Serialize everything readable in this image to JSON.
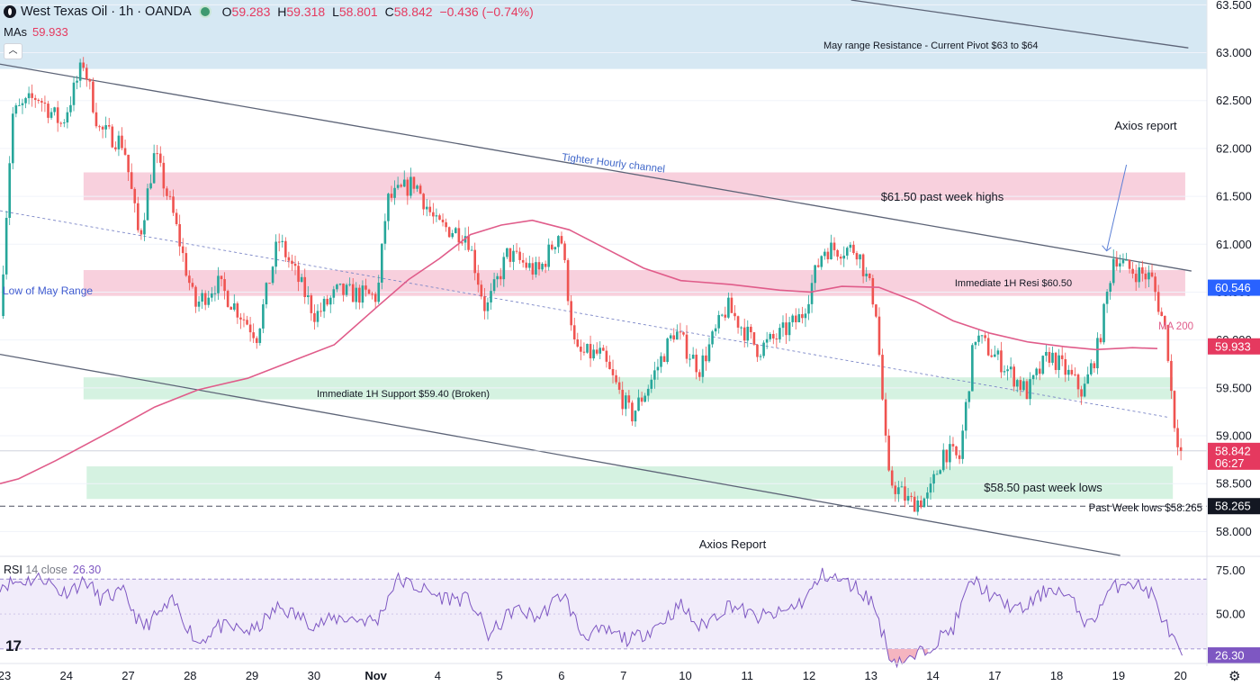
{
  "header": {
    "symbol": "West Texas Oil · 1h · OANDA",
    "open_label": "O",
    "open": "59.283",
    "high_label": "H",
    "high": "59.318",
    "low_label": "L",
    "low": "58.801",
    "close_label": "C",
    "close": "58.842",
    "change": "−0.436 (−0.74%)"
  },
  "ma_legend": {
    "label": "MAs",
    "value": "59.933"
  },
  "rsi_legend": {
    "label": "RSI",
    "params": "14 close",
    "value": "26.30"
  },
  "colors": {
    "up": "#26a69a",
    "down": "#ef5350",
    "ma": "#e05c8a",
    "rsi": "#7e57c2",
    "resistance_zone": "#f8d0dd",
    "support_zone": "#d5f2e1",
    "top_zone": "#d6e8f3"
  },
  "icons": {
    "logo": "tradingview-logo-icon",
    "settings": "gear-icon"
  },
  "chart_data": [
    {
      "type": "candlestick",
      "title": "West Texas Oil · 1h · OANDA",
      "ylim": [
        57.75,
        63.55
      ],
      "y_ticks": [
        "63.500",
        "63.000",
        "62.500",
        "62.000",
        "61.500",
        "61.000",
        "60.500",
        "60.000",
        "59.500",
        "59.000",
        "58.500",
        "58.000"
      ],
      "x_ticks": [
        "23",
        "24",
        "27",
        "28",
        "29",
        "30",
        "Nov",
        "4",
        "5",
        "6",
        "7",
        "10",
        "11",
        "12",
        "13",
        "14",
        "17",
        "18",
        "19",
        "20"
      ],
      "x_range": [
        0,
        19.5
      ],
      "price_labels": [
        {
          "text": "60.546",
          "value": 60.546,
          "color": "#2962ff"
        },
        {
          "text": "59.933",
          "value": 59.933,
          "color": "#e5395f"
        },
        {
          "text": "58.842",
          "sub": "06:27",
          "value": 58.842,
          "color": "#e5395f"
        },
        {
          "text": "58.265",
          "value": 58.265,
          "color": "#131722"
        }
      ],
      "zones": [
        {
          "label": "May range Resistance - Current Pivot $63 to $64",
          "y_top": 63.55,
          "y_bottom": 62.83,
          "x_start": 0,
          "x_end": 19.5,
          "kind": "top_zone"
        },
        {
          "label": "$61.50 past week highs",
          "y_top": 61.75,
          "y_bottom": 61.46,
          "x_start": 1.35,
          "x_end": 19.15,
          "kind": "resistance_zone"
        },
        {
          "label": "Immediate 1H Resi $60.50",
          "y_top": 60.73,
          "y_bottom": 60.46,
          "x_start": 1.35,
          "x_end": 19.15,
          "kind": "resistance_zone"
        },
        {
          "label": "Immediate 1H Support $59.40 (Broken)",
          "y_top": 59.61,
          "y_bottom": 59.38,
          "x_start": 1.35,
          "x_end": 18.95,
          "kind": "support_zone"
        },
        {
          "label": "$58.50 past week lows",
          "y_top": 58.68,
          "y_bottom": 58.34,
          "x_start": 1.4,
          "x_end": 18.95,
          "kind": "support_zone"
        }
      ],
      "trendlines": [
        {
          "label": "Tighter Hourly channel",
          "from": [
            0,
            62.88
          ],
          "to": [
            19.25,
            60.72
          ],
          "style": "solid"
        },
        {
          "label": "",
          "from": [
            0,
            59.85
          ],
          "to": [
            18.1,
            57.75
          ],
          "style": "solid"
        },
        {
          "label": "",
          "from": [
            13.75,
            63.55
          ],
          "to": [
            19.2,
            63.05
          ],
          "style": "solid"
        },
        {
          "label": "Low of May Range",
          "from": [
            0,
            61.35
          ],
          "to": [
            18.9,
            59.19
          ],
          "style": "dashed"
        }
      ],
      "hline": {
        "label": "Past Week lows $58.265",
        "value": 58.265
      },
      "annotations": [
        {
          "text": "Axios report",
          "x": 18.25,
          "y": 62.27
        },
        {
          "text": "Axios Report",
          "x": 11.7,
          "y": 57.84
        },
        {
          "text": "MA 200",
          "x": 18.62,
          "y": 60.09
        }
      ],
      "arrow": {
        "from": [
          18.2,
          61.83
        ],
        "to": [
          17.88,
          60.93
        ]
      },
      "anchors": [
        [
          0,
          60.25
        ],
        [
          0.2,
          62.35
        ],
        [
          0.6,
          62.55
        ],
        [
          1.0,
          62.25
        ],
        [
          1.35,
          62.9
        ],
        [
          1.6,
          62.2
        ],
        [
          2.0,
          62.05
        ],
        [
          2.25,
          61.05
        ],
        [
          2.5,
          61.95
        ],
        [
          2.8,
          61.3
        ],
        [
          3.15,
          60.35
        ],
        [
          3.5,
          60.6
        ],
        [
          4.15,
          60.05
        ],
        [
          4.5,
          61.05
        ],
        [
          5.1,
          60.25
        ],
        [
          5.45,
          60.5
        ],
        [
          6.1,
          60.45
        ],
        [
          6.25,
          61.45
        ],
        [
          6.7,
          61.65
        ],
        [
          7.05,
          61.2
        ],
        [
          7.55,
          61.1
        ],
        [
          7.85,
          60.3
        ],
        [
          8.2,
          60.9
        ],
        [
          8.7,
          60.7
        ],
        [
          9.05,
          61.15
        ],
        [
          9.3,
          59.85
        ],
        [
          9.7,
          59.85
        ],
        [
          10.2,
          59.2
        ],
        [
          10.5,
          59.55
        ],
        [
          10.9,
          60.1
        ],
        [
          11.3,
          59.7
        ],
        [
          11.75,
          60.35
        ],
        [
          12.25,
          59.9
        ],
        [
          12.6,
          60.05
        ],
        [
          12.95,
          60.25
        ],
        [
          13.3,
          60.95
        ],
        [
          13.85,
          60.95
        ],
        [
          14.15,
          60.35
        ],
        [
          14.35,
          58.55
        ],
        [
          14.7,
          58.3
        ],
        [
          15.0,
          58.35
        ],
        [
          15.25,
          58.85
        ],
        [
          15.5,
          58.75
        ],
        [
          15.75,
          60.05
        ],
        [
          16.2,
          59.75
        ],
        [
          16.6,
          59.45
        ],
        [
          16.95,
          59.85
        ],
        [
          17.25,
          59.65
        ],
        [
          17.5,
          59.45
        ],
        [
          17.75,
          59.95
        ],
        [
          18.0,
          60.9
        ],
        [
          18.2,
          60.75
        ],
        [
          18.6,
          60.65
        ],
        [
          18.85,
          60.05
        ],
        [
          18.95,
          59.25
        ],
        [
          19.0,
          59.05
        ],
        [
          19.08,
          58.84
        ]
      ],
      "ma_series": [
        [
          0,
          58.5
        ],
        [
          0.3,
          58.55
        ],
        [
          0.9,
          58.74
        ],
        [
          1.8,
          59.05
        ],
        [
          2.5,
          59.3
        ],
        [
          3.2,
          59.48
        ],
        [
          4.0,
          59.6
        ],
        [
          4.8,
          59.8
        ],
        [
          5.4,
          59.95
        ],
        [
          6.1,
          60.35
        ],
        [
          6.6,
          60.63
        ],
        [
          7.1,
          60.85
        ],
        [
          7.6,
          61.1
        ],
        [
          8.1,
          61.2
        ],
        [
          8.6,
          61.25
        ],
        [
          9.2,
          61.15
        ],
        [
          9.8,
          60.95
        ],
        [
          10.4,
          60.75
        ],
        [
          11.0,
          60.62
        ],
        [
          11.8,
          60.58
        ],
        [
          12.6,
          60.52
        ],
        [
          13.1,
          60.5
        ],
        [
          13.6,
          60.56
        ],
        [
          14.2,
          60.55
        ],
        [
          14.8,
          60.4
        ],
        [
          15.4,
          60.2
        ],
        [
          16.0,
          60.07
        ],
        [
          16.6,
          59.98
        ],
        [
          17.2,
          59.93
        ],
        [
          17.7,
          59.9
        ],
        [
          18.3,
          59.92
        ],
        [
          18.7,
          59.91
        ]
      ]
    },
    {
      "type": "line",
      "title": "RSI 14 close",
      "ylim": [
        22.7,
        82.5
      ],
      "y_ticks": [
        "75.00",
        "50.00"
      ],
      "levels": [
        70,
        30
      ],
      "current": {
        "text": "26.30",
        "value": 26.3
      },
      "anchors": [
        [
          0,
          67
        ],
        [
          0.4,
          69
        ],
        [
          0.7,
          71
        ],
        [
          1.0,
          62
        ],
        [
          1.4,
          69
        ],
        [
          1.6,
          59
        ],
        [
          2.0,
          62
        ],
        [
          2.3,
          42
        ],
        [
          2.8,
          57
        ],
        [
          3.2,
          33
        ],
        [
          3.5,
          43
        ],
        [
          4.1,
          40
        ],
        [
          4.5,
          54
        ],
        [
          5.1,
          44
        ],
        [
          5.5,
          48
        ],
        [
          6.1,
          46
        ],
        [
          6.4,
          70
        ],
        [
          6.7,
          66
        ],
        [
          7.1,
          60
        ],
        [
          7.6,
          58
        ],
        [
          7.9,
          37
        ],
        [
          8.3,
          53
        ],
        [
          8.7,
          48
        ],
        [
          9.1,
          62
        ],
        [
          9.4,
          38
        ],
        [
          9.8,
          40
        ],
        [
          10.2,
          35
        ],
        [
          10.6,
          43
        ],
        [
          11.0,
          55
        ],
        [
          11.3,
          42
        ],
        [
          11.8,
          56
        ],
        [
          12.2,
          48
        ],
        [
          12.6,
          50
        ],
        [
          13.0,
          58
        ],
        [
          13.3,
          73
        ],
        [
          13.8,
          66
        ],
        [
          14.1,
          57
        ],
        [
          14.4,
          24
        ],
        [
          14.7,
          23
        ],
        [
          15.1,
          34
        ],
        [
          15.4,
          42
        ],
        [
          15.7,
          70
        ],
        [
          16.1,
          58
        ],
        [
          16.5,
          52
        ],
        [
          17.0,
          66
        ],
        [
          17.3,
          58
        ],
        [
          17.6,
          43
        ],
        [
          17.9,
          62
        ],
        [
          18.2,
          70
        ],
        [
          18.6,
          62
        ],
        [
          18.9,
          39
        ],
        [
          19.1,
          25.5
        ]
      ]
    }
  ]
}
